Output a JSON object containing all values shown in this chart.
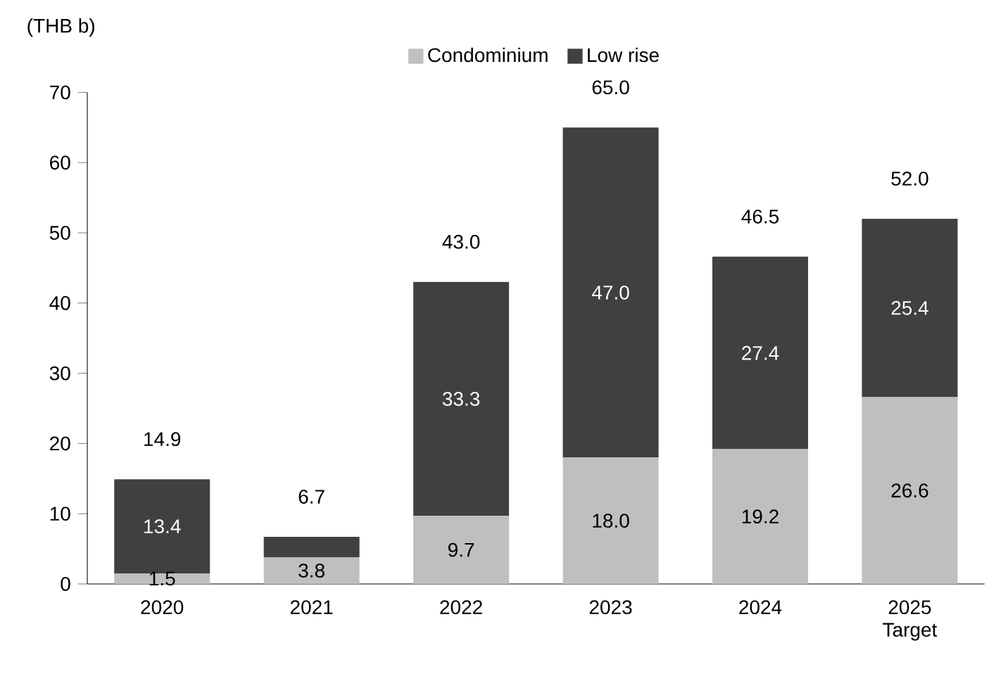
{
  "chart_data": {
    "type": "bar",
    "stacked": true,
    "ylabel": "(THB b)",
    "categories": [
      "2020",
      "2021",
      "2022",
      "2023",
      "2024",
      "2025 Target"
    ],
    "series": [
      {
        "name": "Condominium",
        "color": "#bfbfbf",
        "values": [
          1.5,
          3.8,
          9.7,
          18.0,
          19.2,
          26.6
        ],
        "value_labels": [
          "1.5",
          "3.8",
          "9.7",
          "18.0",
          "19.2",
          "26.6"
        ]
      },
      {
        "name": "Low rise",
        "color": "#404040",
        "values": [
          13.4,
          2.9,
          33.3,
          47.0,
          27.4,
          25.4
        ],
        "value_labels": [
          "13.4",
          null,
          "33.3",
          "47.0",
          "27.4",
          "25.4"
        ]
      }
    ],
    "totals": [
      "14.9",
      "6.7",
      "43.0",
      "65.0",
      "46.5",
      "52.0"
    ],
    "ylim": [
      0,
      70
    ],
    "yticks": [
      0,
      10,
      20,
      30,
      40,
      50,
      60,
      70
    ],
    "legend": "top",
    "grid": false
  }
}
